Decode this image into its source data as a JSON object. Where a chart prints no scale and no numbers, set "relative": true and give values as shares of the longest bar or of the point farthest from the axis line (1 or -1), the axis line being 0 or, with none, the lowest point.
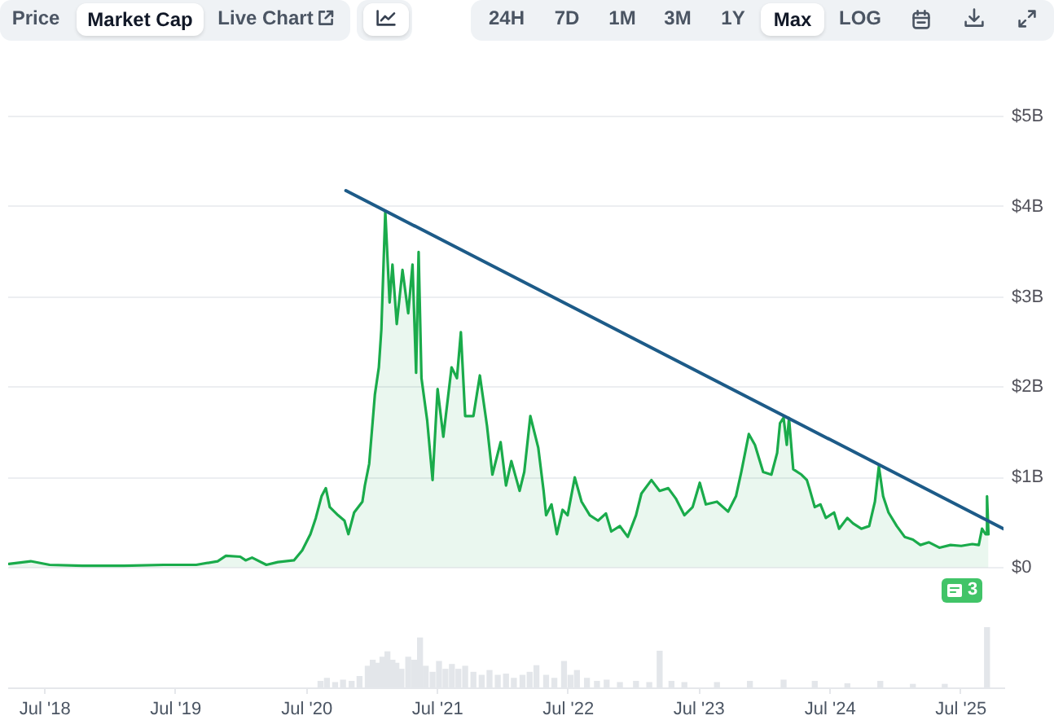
{
  "chart_data": [
    {
      "type": "area",
      "xlim": [
        "2018-03-20",
        "2025-10-28"
      ],
      "ylim": [
        0,
        5
      ],
      "yticks": [
        {
          "value": 0,
          "label": "$0"
        },
        {
          "value": 1,
          "label": "$1B"
        },
        {
          "value": 2,
          "label": "$2B"
        },
        {
          "value": 3,
          "label": "$3B"
        },
        {
          "value": 4,
          "label": "$4B"
        },
        {
          "value": 5,
          "label": "$5B"
        }
      ],
      "grid": "y",
      "tick_labels": "y",
      "annotations": [
        "Price",
        "Market Cap",
        "Live Chart",
        "24H",
        "7D",
        "1M",
        "3M",
        "1Y",
        "Max",
        "LOG",
        "3"
      ],
      "series": [
        {
          "color": "#1aab4b",
          "x": [
            "2018-03-22",
            "2018-05-22",
            "2018-07-14",
            "2018-10-14",
            "2019-02-06",
            "2019-05-28",
            "2019-08-27",
            "2019-10-26",
            "2019-11-18",
            "2019-12-28",
            "2020-01-12",
            "2020-01-30",
            "2020-03-10",
            "2020-04-11",
            "2020-05-26",
            "2020-06-18",
            "2020-07-11",
            "2020-07-26",
            "2020-08-11",
            "2020-08-23",
            "2020-09-03",
            "2020-09-26",
            "2020-10-14",
            "2020-10-25",
            "2020-11-10",
            "2020-12-03",
            "2020-12-10",
            "2020-12-22",
            "2021-01-07",
            "2021-01-18",
            "2021-01-25",
            "2021-02-05",
            "2021-02-17",
            "2021-02-25",
            "2021-03-09",
            "2021-03-25",
            "2021-04-10",
            "2021-04-22",
            "2021-05-02",
            "2021-05-09",
            "2021-05-17",
            "2021-06-02",
            "2021-06-17",
            "2021-07-01",
            "2021-07-17",
            "2021-08-09",
            "2021-08-24",
            "2021-09-04",
            "2021-09-16",
            "2021-10-09",
            "2021-10-27",
            "2021-11-16",
            "2021-12-01",
            "2021-12-24",
            "2022-01-08",
            "2022-01-23",
            "2022-02-15",
            "2022-02-28",
            "2022-03-17",
            "2022-04-08",
            "2022-04-23",
            "2022-04-30",
            "2022-05-15",
            "2022-05-30",
            "2022-06-15",
            "2022-06-29",
            "2022-07-19",
            "2022-08-07",
            "2022-08-30",
            "2022-09-22",
            "2022-10-14",
            "2022-10-29",
            "2022-11-22",
            "2022-12-14",
            "2023-01-06",
            "2023-01-21",
            "2023-02-18",
            "2023-03-13",
            "2023-04-06",
            "2023-04-28",
            "2023-05-21",
            "2023-06-13",
            "2023-07-03",
            "2023-07-20",
            "2023-08-20",
            "2023-09-20",
            "2023-10-12",
            "2023-10-27",
            "2023-11-17",
            "2023-12-04",
            "2023-12-27",
            "2024-01-19",
            "2024-02-04",
            "2024-02-12",
            "2024-02-22",
            "2024-03-02",
            "2024-03-08",
            "2024-03-20",
            "2024-04-12",
            "2024-04-27",
            "2024-05-04",
            "2024-05-19",
            "2024-06-04",
            "2024-06-19",
            "2024-07-12",
            "2024-07-26",
            "2024-08-18",
            "2024-09-03",
            "2024-09-26",
            "2024-10-18",
            "2024-11-03",
            "2024-11-14",
            "2024-11-26",
            "2024-12-11",
            "2025-01-03",
            "2025-01-25",
            "2025-02-17",
            "2025-03-10",
            "2025-04-03",
            "2025-05-02",
            "2025-06-02",
            "2025-07-02",
            "2025-08-02",
            "2025-08-20",
            "2025-08-29",
            "2025-09-08",
            "2025-09-12",
            "2025-09-16"
          ],
          "values": [
            0.04,
            0.07,
            0.03,
            0.02,
            0.02,
            0.03,
            0.03,
            0.07,
            0.13,
            0.12,
            0.08,
            0.11,
            0.03,
            0.06,
            0.08,
            0.19,
            0.37,
            0.55,
            0.79,
            0.88,
            0.67,
            0.58,
            0.52,
            0.37,
            0.61,
            0.73,
            0.91,
            1.15,
            1.92,
            2.22,
            2.64,
            3.95,
            2.94,
            3.36,
            2.7,
            3.3,
            2.82,
            3.36,
            2.16,
            3.5,
            2.1,
            1.63,
            0.97,
            1.98,
            1.45,
            2.22,
            2.1,
            2.61,
            1.68,
            1.68,
            2.13,
            1.57,
            1.03,
            1.39,
            0.91,
            1.18,
            0.85,
            1.06,
            1.68,
            1.33,
            0.85,
            0.58,
            0.7,
            0.37,
            0.64,
            0.58,
            1.0,
            0.73,
            0.58,
            0.52,
            0.6,
            0.4,
            0.46,
            0.34,
            0.58,
            0.82,
            0.97,
            0.85,
            0.88,
            0.76,
            0.58,
            0.67,
            0.94,
            0.7,
            0.73,
            0.62,
            0.79,
            1.06,
            1.48,
            1.36,
            1.06,
            1.03,
            1.27,
            1.6,
            1.66,
            1.36,
            1.66,
            1.09,
            1.03,
            0.97,
            0.88,
            0.67,
            0.7,
            0.55,
            0.61,
            0.43,
            0.55,
            0.49,
            0.43,
            0.46,
            0.73,
            1.12,
            0.79,
            0.61,
            0.46,
            0.34,
            0.31,
            0.25,
            0.28,
            0.22,
            0.25,
            0.24,
            0.26,
            0.25,
            0.43,
            0.37,
            0.79,
            0.37
          ]
        },
        {
          "type": "line",
          "color": "#1d5b88",
          "x": [
            "2020-10-18",
            "2025-10-28"
          ],
          "values": [
            4.18,
            0.43
          ]
        }
      ]
    },
    {
      "type": "bar",
      "relative": true,
      "color": "#e3e6ea",
      "xlim": [
        "2018-03-20",
        "2025-10-28"
      ],
      "xticks": [
        {
          "value": "2018-07",
          "label": "Jul '18"
        },
        {
          "value": "2019-07",
          "label": "Jul '19"
        },
        {
          "value": "2020-07",
          "label": "Jul '20"
        },
        {
          "value": "2021-07",
          "label": "Jul '21"
        },
        {
          "value": "2022-07",
          "label": "Jul '22"
        },
        {
          "value": "2023-07",
          "label": "Jul '23"
        },
        {
          "value": "2024-07",
          "label": "Jul '24"
        },
        {
          "value": "2025-07",
          "label": "Jul '25"
        }
      ],
      "tick_labels": "x",
      "x": [
        "2020-08-08",
        "2020-08-26",
        "2020-09-18",
        "2020-10-10",
        "2020-11-03",
        "2020-11-25",
        "2020-12-18",
        "2021-01-01",
        "2021-01-14",
        "2021-01-28",
        "2021-02-11",
        "2021-02-25",
        "2021-03-08",
        "2021-03-22",
        "2021-04-10",
        "2021-04-27",
        "2021-05-13",
        "2021-05-29",
        "2021-06-17",
        "2021-07-05",
        "2021-07-23",
        "2021-08-10",
        "2021-08-28",
        "2021-09-16",
        "2021-10-09",
        "2021-11-01",
        "2021-11-23",
        "2021-12-16",
        "2022-01-08",
        "2022-01-30",
        "2022-02-23",
        "2022-03-15",
        "2022-04-03",
        "2022-04-30",
        "2022-05-23",
        "2022-06-19",
        "2022-07-07",
        "2022-07-25",
        "2022-08-22",
        "2022-09-19",
        "2022-10-16",
        "2022-11-22",
        "2023-01-06",
        "2023-02-12",
        "2023-03-13",
        "2023-04-15",
        "2023-05-21",
        "2023-08-20",
        "2023-11-20",
        "2024-02-22",
        "2024-05-19",
        "2024-08-18",
        "2024-11-18",
        "2025-02-17",
        "2025-05-17",
        "2025-09-12"
      ],
      "values": [
        0.1,
        0.15,
        0.08,
        0.12,
        0.1,
        0.18,
        0.35,
        0.45,
        0.4,
        0.5,
        0.59,
        0.45,
        0.4,
        0.3,
        0.5,
        0.45,
        0.82,
        0.35,
        0.25,
        0.43,
        0.3,
        0.38,
        0.3,
        0.35,
        0.25,
        0.2,
        0.28,
        0.2,
        0.22,
        0.15,
        0.2,
        0.25,
        0.36,
        0.2,
        0.15,
        0.43,
        0.2,
        0.28,
        0.15,
        0.1,
        0.12,
        0.08,
        0.1,
        0.08,
        0.6,
        0.1,
        0.08,
        0.08,
        0.1,
        0.12,
        0.1,
        0.06,
        0.1,
        0.05,
        0.05,
        1.0
      ]
    }
  ]
}
